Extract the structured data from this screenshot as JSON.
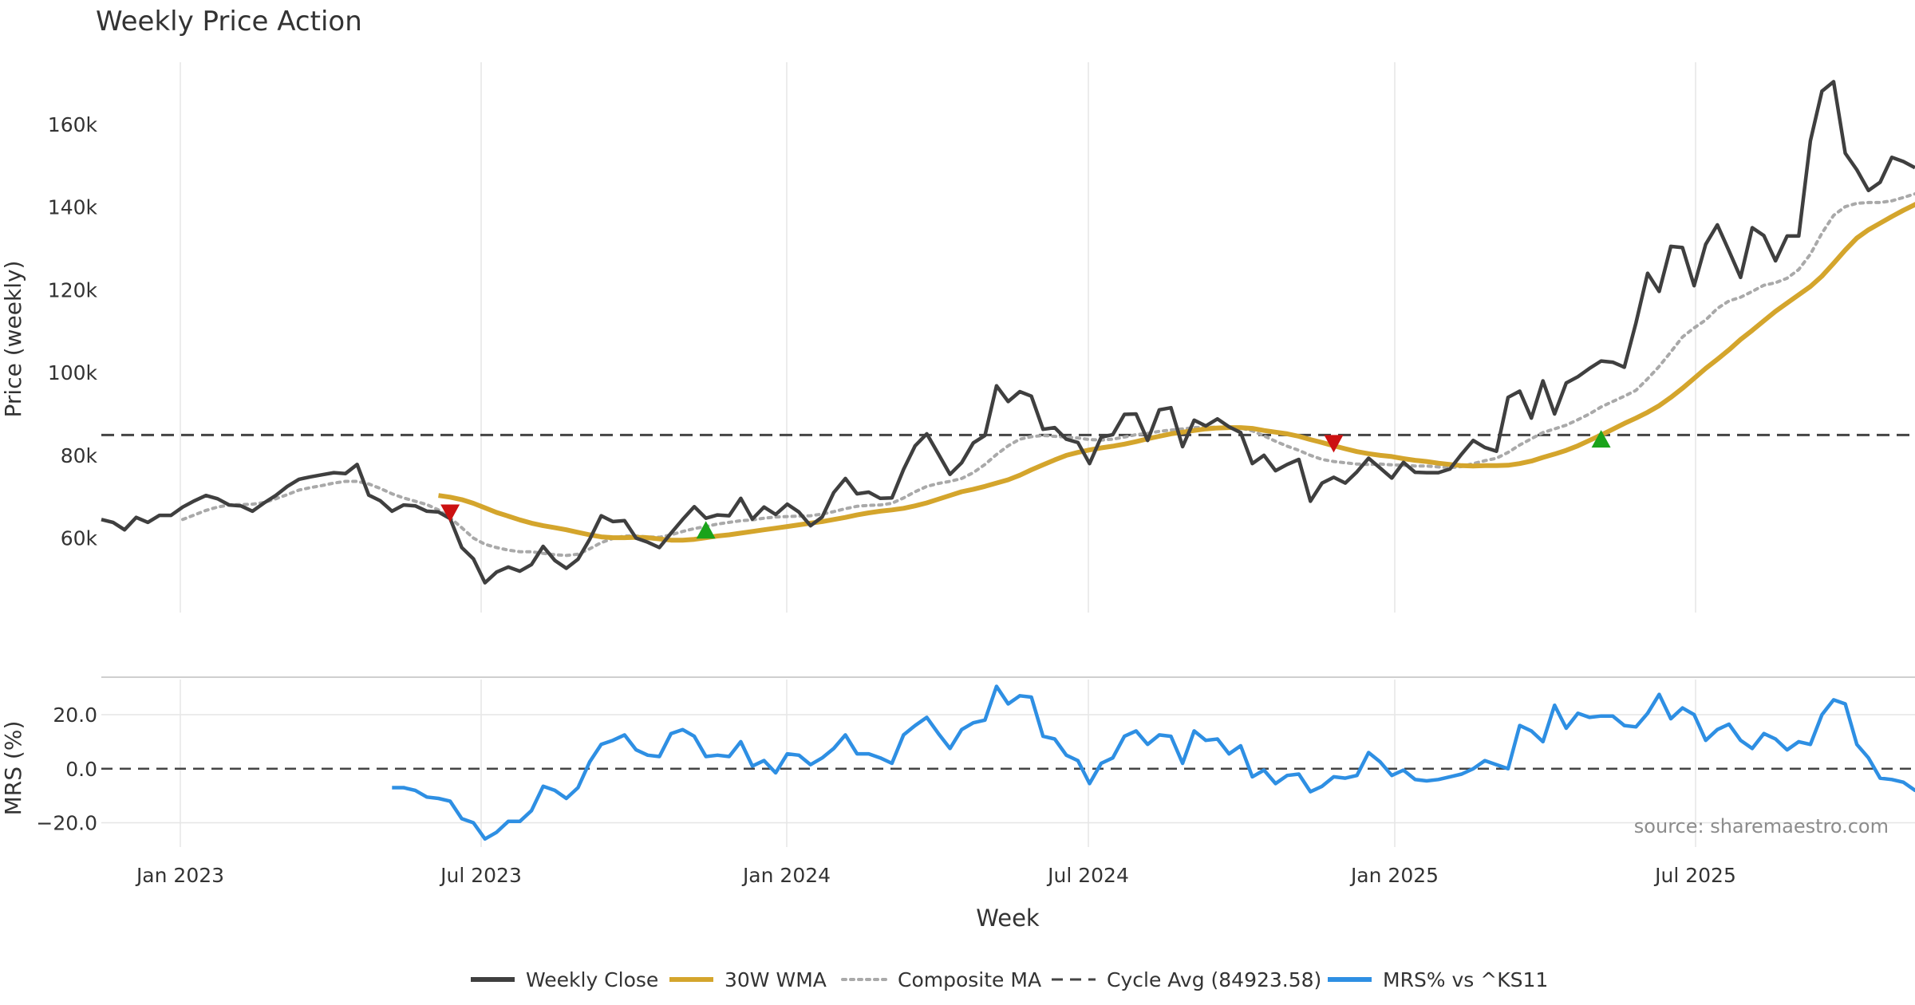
{
  "colors": {
    "close": "#3f3f3f",
    "wma": "#d4a52c",
    "composite": "#a9a9a9",
    "cycle": "#444444",
    "mrs": "#2e8fe3",
    "buy": "#1aa31a",
    "sell": "#cc1111",
    "grid": "#e6e6e6",
    "text": "#333333",
    "source": "#8c8c8c"
  },
  "chart_data": {
    "type": "line",
    "title": "Weekly Price Action",
    "xlabel": "Week",
    "x_ticks": [
      "Jan 2023",
      "Jul 2023",
      "Jan 2024",
      "Jul 2024",
      "Jan 2025",
      "Jul 2025"
    ],
    "price_panel": {
      "ylabel": "Price (weekly)",
      "ylim": [
        42000,
        175000
      ],
      "yticks": [
        {
          "value": 60000,
          "label": "60k"
        },
        {
          "value": 80000,
          "label": "80k"
        },
        {
          "value": 100000,
          "label": "100k"
        },
        {
          "value": 120000,
          "label": "120k"
        },
        {
          "value": 140000,
          "label": "140k"
        },
        {
          "value": 160000,
          "label": "160k"
        }
      ],
      "weekly_close": [
        64500,
        63800,
        62000,
        65000,
        63800,
        65500,
        65500,
        67500,
        69000,
        70300,
        69500,
        68000,
        67800,
        66500,
        68500,
        70300,
        72500,
        74200,
        74800,
        75300,
        75800,
        75600,
        77800,
        70400,
        69000,
        66500,
        68000,
        67800,
        66500,
        66300,
        64700,
        57700,
        55000,
        49200,
        51800,
        53000,
        52000,
        53600,
        58000,
        54600,
        52700,
        54900,
        59700,
        65400,
        64000,
        64200,
        60000,
        59000,
        57700,
        61200,
        64500,
        67600,
        64800,
        65600,
        65400,
        69600,
        64600,
        67500,
        65700,
        68200,
        66300,
        63000,
        65100,
        71000,
        74400,
        70700,
        71100,
        69600,
        69700,
        76600,
        82300,
        85200,
        80300,
        75400,
        78200,
        83000,
        84800,
        96800,
        93000,
        95400,
        94300,
        86300,
        86700,
        83900,
        83100,
        78000,
        84400,
        85000,
        89900,
        90000,
        83600,
        91000,
        91500,
        82100,
        88500,
        87100,
        88800,
        86900,
        85500,
        78000,
        80000,
        76300,
        77800,
        79000,
        68900,
        73300,
        74700,
        73300,
        76000,
        79300,
        76900,
        74500,
        78300,
        75900,
        75800,
        75800,
        76700,
        80300,
        83600,
        81900,
        81000,
        94000,
        95500,
        89000,
        98000,
        90000,
        97500,
        99000,
        101000,
        102800,
        102500,
        101300,
        112000,
        124000,
        119600,
        130500,
        130200,
        121000,
        131000,
        135700,
        129400,
        123000,
        135000,
        133100,
        127000,
        133000,
        133000,
        156000,
        168000,
        170300,
        153000,
        149000,
        144000,
        146000,
        152000,
        151000,
        149500
      ],
      "wma_30w": [
        null,
        null,
        null,
        null,
        null,
        null,
        null,
        null,
        null,
        null,
        null,
        null,
        null,
        null,
        null,
        null,
        null,
        null,
        null,
        null,
        null,
        null,
        null,
        null,
        null,
        null,
        null,
        null,
        null,
        70300,
        69900,
        69300,
        68400,
        67300,
        66200,
        65300,
        64400,
        63600,
        63000,
        62500,
        62000,
        61400,
        60800,
        60300,
        60100,
        60100,
        60200,
        60100,
        59800,
        59500,
        59500,
        59700,
        60100,
        60500,
        60800,
        61200,
        61600,
        62000,
        62400,
        62800,
        63200,
        63600,
        64000,
        64500,
        65000,
        65600,
        66100,
        66500,
        66800,
        67200,
        67800,
        68500,
        69400,
        70300,
        71200,
        71800,
        72500,
        73300,
        74100,
        75200,
        76500,
        77700,
        78900,
        80000,
        80700,
        81300,
        81800,
        82200,
        82700,
        83300,
        84000,
        84600,
        85200,
        85600,
        86000,
        86400,
        86600,
        86700,
        86700,
        86500,
        86000,
        85600,
        85200,
        84600,
        83800,
        83100,
        82300,
        81600,
        80900,
        80400,
        80000,
        79700,
        79200,
        78800,
        78500,
        78100,
        77800,
        77500,
        77400,
        77500,
        77500,
        77600,
        78000,
        78600,
        79500,
        80300,
        81200,
        82300,
        83600,
        84900,
        86300,
        87700,
        89000,
        90400,
        92000,
        94000,
        96200,
        98600,
        101000,
        103200,
        105500,
        108000,
        110200,
        112500,
        114800,
        116800,
        118800,
        120800,
        123300,
        126400,
        129600,
        132500,
        134500,
        136100,
        137700,
        139200,
        140600,
        142000
      ],
      "composite_ma": [
        null,
        null,
        null,
        null,
        null,
        null,
        null,
        64500,
        65600,
        66700,
        67500,
        68000,
        68100,
        68200,
        68600,
        69500,
        70500,
        71600,
        72200,
        72700,
        73300,
        73700,
        73700,
        73100,
        72000,
        70700,
        69700,
        68900,
        68100,
        66800,
        64900,
        62500,
        60000,
        58500,
        57700,
        57100,
        56700,
        56700,
        56300,
        56000,
        55800,
        56100,
        57400,
        58900,
        59900,
        60500,
        60500,
        60300,
        60200,
        60800,
        61600,
        62300,
        62800,
        63400,
        63800,
        64200,
        64400,
        64800,
        65100,
        65200,
        65300,
        65400,
        65800,
        66400,
        67100,
        67700,
        67900,
        68000,
        68400,
        69700,
        71200,
        72500,
        73200,
        73700,
        74400,
        75800,
        77800,
        80200,
        82300,
        83900,
        84500,
        84800,
        84600,
        84400,
        84200,
        83800,
        83700,
        83900,
        84400,
        85000,
        85300,
        85800,
        86100,
        86400,
        86700,
        86800,
        86800,
        86800,
        86600,
        85900,
        84700,
        83400,
        82200,
        81200,
        80000,
        79000,
        78500,
        78200,
        77900,
        77800,
        77900,
        77700,
        77600,
        77400,
        77400,
        77200,
        77000,
        77300,
        78000,
        78700,
        79300,
        80700,
        82500,
        84000,
        85500,
        86400,
        87300,
        88600,
        90000,
        91700,
        93000,
        94300,
        95700,
        98500,
        101500,
        105000,
        108600,
        110800,
        112700,
        115500,
        117300,
        118200,
        119600,
        121100,
        121700,
        122800,
        124900,
        128600,
        133700,
        138000,
        140100,
        140900,
        141100,
        141100,
        141500,
        142300,
        143200,
        144000
      ],
      "cycle_avg": 84923.58,
      "signals": [
        {
          "type": "sell",
          "index": 30,
          "value": 66000
        },
        {
          "type": "buy",
          "index": 52,
          "value": 62000
        },
        {
          "type": "sell",
          "index": 106,
          "value": 82800
        },
        {
          "type": "buy",
          "index": 129,
          "value": 84000
        }
      ]
    },
    "mrs_panel": {
      "ylabel": "MRS (%)",
      "ylim": [
        -29,
        33
      ],
      "yticks": [
        {
          "value": 20,
          "label": "20.0"
        },
        {
          "value": 0,
          "label": "0.0"
        },
        {
          "value": -20,
          "label": "−20.0"
        }
      ],
      "zero_line": 0,
      "mrs_values": [
        null,
        null,
        null,
        null,
        null,
        null,
        null,
        null,
        null,
        null,
        null,
        null,
        null,
        null,
        null,
        null,
        null,
        null,
        null,
        null,
        null,
        null,
        null,
        null,
        null,
        -7,
        -7,
        -8,
        -10.5,
        -11,
        -12,
        -18.5,
        -20,
        -26,
        -23.5,
        -19.5,
        -19.5,
        -15.5,
        -6.5,
        -8,
        -11,
        -7,
        2.5,
        9,
        10.5,
        12.5,
        7,
        5,
        4.5,
        13,
        14.5,
        12,
        4.5,
        5,
        4.5,
        10,
        1,
        3,
        -1.5,
        5.5,
        5,
        1.5,
        4,
        7.5,
        12.5,
        5.5,
        5.5,
        4,
        2,
        12.5,
        16,
        19,
        13,
        7.5,
        14.5,
        17,
        18,
        30.5,
        24,
        27,
        26.5,
        12,
        11,
        5,
        3,
        -5.5,
        2,
        4,
        12,
        14,
        9,
        12.5,
        12,
        2,
        14,
        10.5,
        11,
        5.5,
        8.5,
        -3,
        -0.5,
        -5.5,
        -2.5,
        -2,
        -8.5,
        -6.5,
        -3,
        -3.5,
        -2.5,
        6,
        2.5,
        -2.5,
        -0.5,
        -4,
        -4.5,
        -4,
        -3,
        -2,
        0,
        3,
        1.5,
        0,
        16,
        14,
        10,
        23.5,
        15,
        20.5,
        19,
        19.5,
        19.5,
        16,
        15.5,
        20.5,
        27.5,
        18.5,
        22.5,
        20,
        10.5,
        14.5,
        16.5,
        10.5,
        7.5,
        13,
        11,
        7,
        10,
        9,
        20,
        25.5,
        24,
        9,
        4,
        -3.5,
        -4,
        -5,
        -8,
        -8.5
      ]
    },
    "source": "source: sharemaestro.com",
    "legend": [
      {
        "name": "Weekly Close",
        "style": "solid",
        "color_key": "close"
      },
      {
        "name": "30W WMA",
        "style": "solid",
        "color_key": "wma"
      },
      {
        "name": "Composite MA",
        "style": "dotted",
        "color_key": "composite"
      },
      {
        "name": "Cycle Avg (84923.58)",
        "style": "dashed",
        "color_key": "cycle"
      },
      {
        "name": "MRS% vs ^KS11",
        "style": "solid",
        "color_key": "mrs"
      }
    ]
  }
}
